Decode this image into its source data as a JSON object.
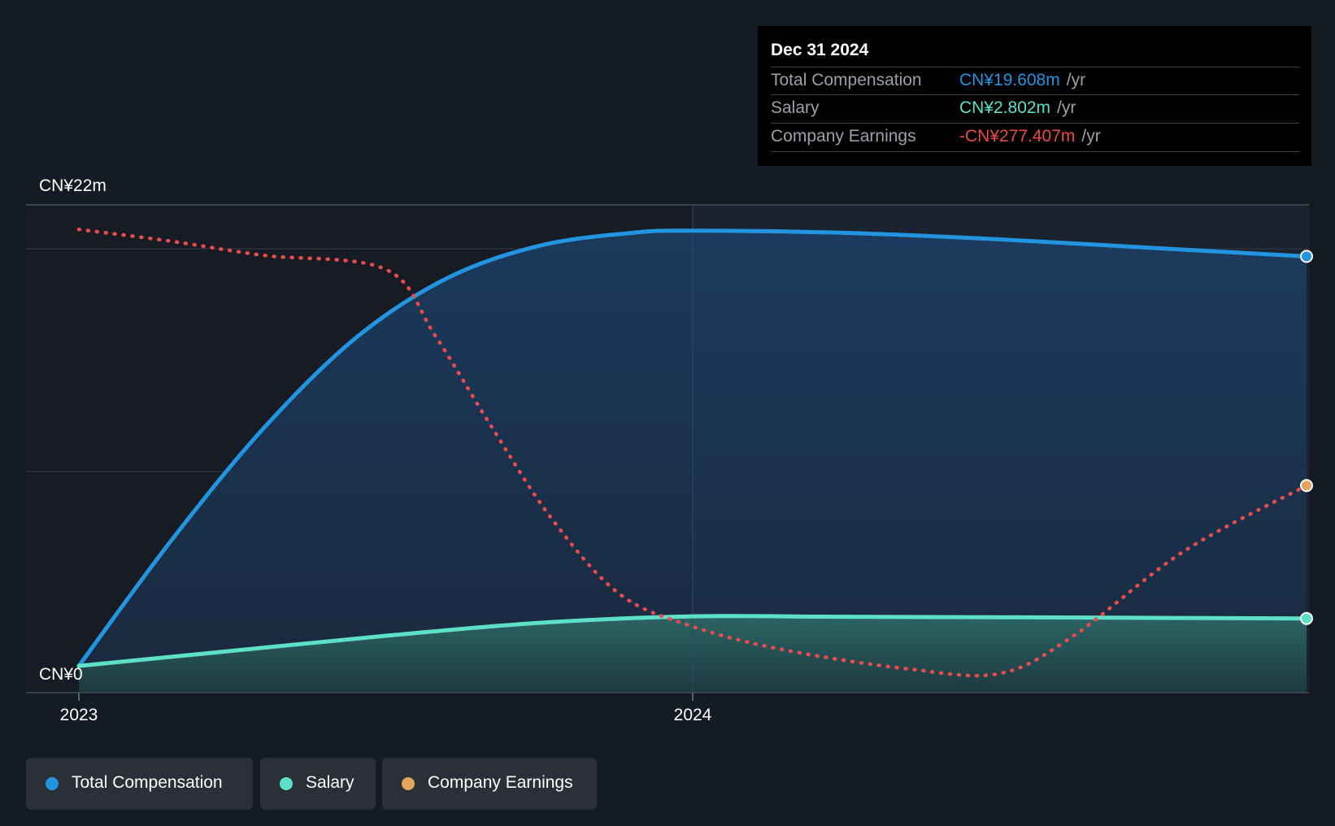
{
  "colors": {
    "total_compensation": "#2394e0",
    "salary": "#5ee0c8",
    "company_earnings": "#e84c4c",
    "earnings_legend": "#e3a65c",
    "background": "#151b24"
  },
  "tooltip": {
    "date": "Dec 31 2024",
    "rows": [
      {
        "label": "Total Compensation",
        "value": "CN¥19.608m",
        "unit": "/yr"
      },
      {
        "label": "Salary",
        "value": "CN¥2.802m",
        "unit": "/yr"
      },
      {
        "label": "Company Earnings",
        "value": "-CN¥277.407m",
        "unit": "/yr"
      }
    ]
  },
  "legend": {
    "items": [
      {
        "label": "Total Compensation"
      },
      {
        "label": "Salary"
      },
      {
        "label": "Company Earnings"
      }
    ]
  },
  "chart_data": {
    "type": "line",
    "title": "",
    "y_axis_labels": [
      "CN¥22m",
      "CN¥0"
    ],
    "ylim": [
      0,
      22
    ],
    "x_tick_labels": [
      "2023",
      "2024"
    ],
    "x_ticks": [
      2023.0,
      2024.0
    ],
    "xlim": [
      2023.0,
      2025.0
    ],
    "series": [
      {
        "name": "Total Compensation",
        "unit": "CN¥m",
        "x": [
          2023.0,
          2023.15,
          2023.3,
          2023.45,
          2023.6,
          2023.75,
          2023.9,
          2024.0,
          2024.25,
          2024.5,
          2024.75,
          2025.0
        ],
        "values": [
          0.6,
          6.4,
          11.6,
          15.8,
          18.6,
          20.1,
          20.7,
          20.8,
          20.7,
          20.4,
          20.0,
          19.608
        ]
      },
      {
        "name": "Salary",
        "unit": "CN¥m",
        "x": [
          2023.0,
          2023.25,
          2023.5,
          2023.75,
          2024.0,
          2024.25,
          2024.5,
          2024.75,
          2025.0
        ],
        "values": [
          0.6,
          1.3,
          2.0,
          2.6,
          2.9,
          2.88,
          2.86,
          2.83,
          2.802
        ]
      },
      {
        "name": "Company Earnings",
        "style": "dotted",
        "axis_note": "plotted on separate scale",
        "relative_level": [
          0.965,
          0.94,
          0.91,
          0.88,
          0.74,
          0.55,
          0.35,
          0.19,
          0.12,
          0.07,
          0.03,
          0.02,
          0.1,
          0.28,
          0.42
        ],
        "x": [
          2023.0,
          2023.15,
          2023.3,
          2023.5,
          2023.58,
          2023.67,
          2023.77,
          2023.88,
          2024.0,
          2024.15,
          2024.35,
          2024.5,
          2024.62,
          2024.8,
          2025.0
        ]
      }
    ]
  }
}
